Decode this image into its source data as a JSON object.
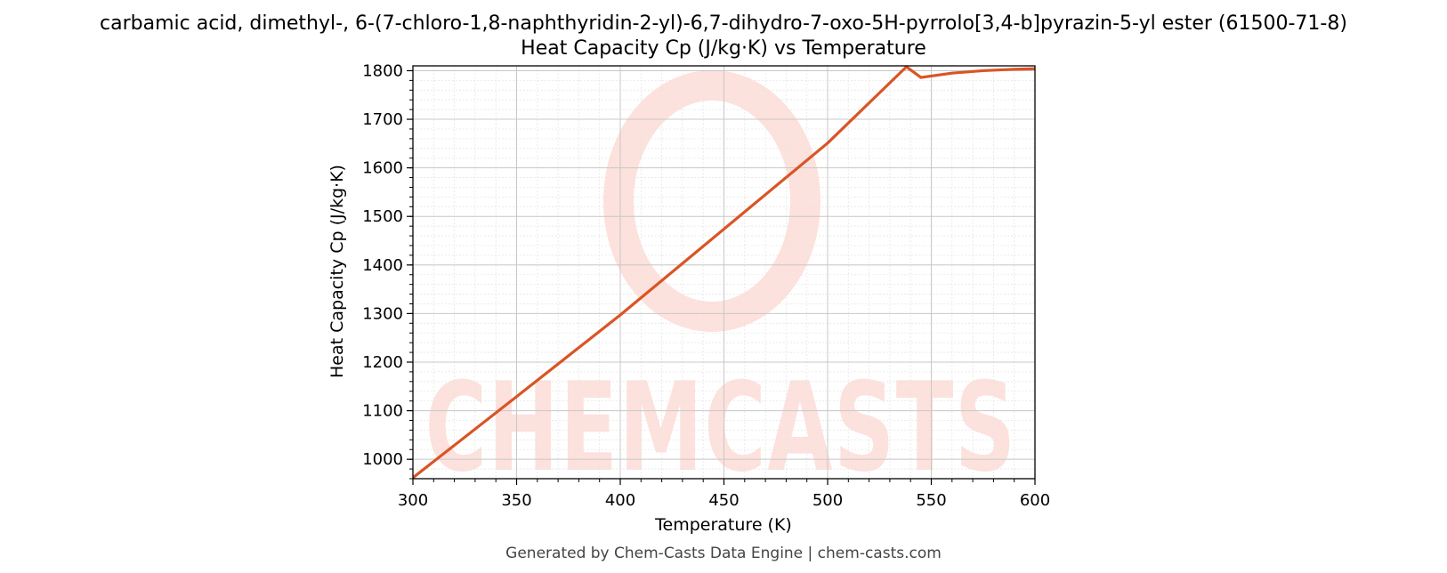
{
  "chart_data": {
    "type": "line",
    "title": "carbamic acid, dimethyl-, 6-(7-chloro-1,8-naphthyridin-2-yl)-6,7-dihydro-7-oxo-5H-pyrrolo[3,4-b]pyrazin-5-yl ester (61500-71-8)",
    "subtitle": "Heat Capacity Cp (J/kg·K) vs Temperature",
    "xlabel": "Temperature (K)",
    "ylabel": "Heat Capacity Cp (J/kg·K)",
    "xlim": [
      300,
      600
    ],
    "ylim": [
      960,
      1810
    ],
    "x_ticks": [
      300,
      350,
      400,
      450,
      500,
      550,
      600
    ],
    "y_ticks": [
      1000,
      1100,
      1200,
      1300,
      1400,
      1500,
      1600,
      1700,
      1800
    ],
    "grid": true,
    "series": [
      {
        "color": "#d95525",
        "x": [
          300,
          350,
          400,
          450,
          500,
          538,
          545,
          560,
          575,
          590,
          600
        ],
        "y": [
          962,
          1129,
          1297,
          1474,
          1651,
          1808,
          1786,
          1795,
          1800,
          1803,
          1804
        ]
      }
    ]
  },
  "watermark": {
    "text": "CHEMCASTS",
    "color": "#fde1dc"
  },
  "footer": {
    "text": "Generated by Chem-Casts Data Engine | chem-casts.com"
  }
}
